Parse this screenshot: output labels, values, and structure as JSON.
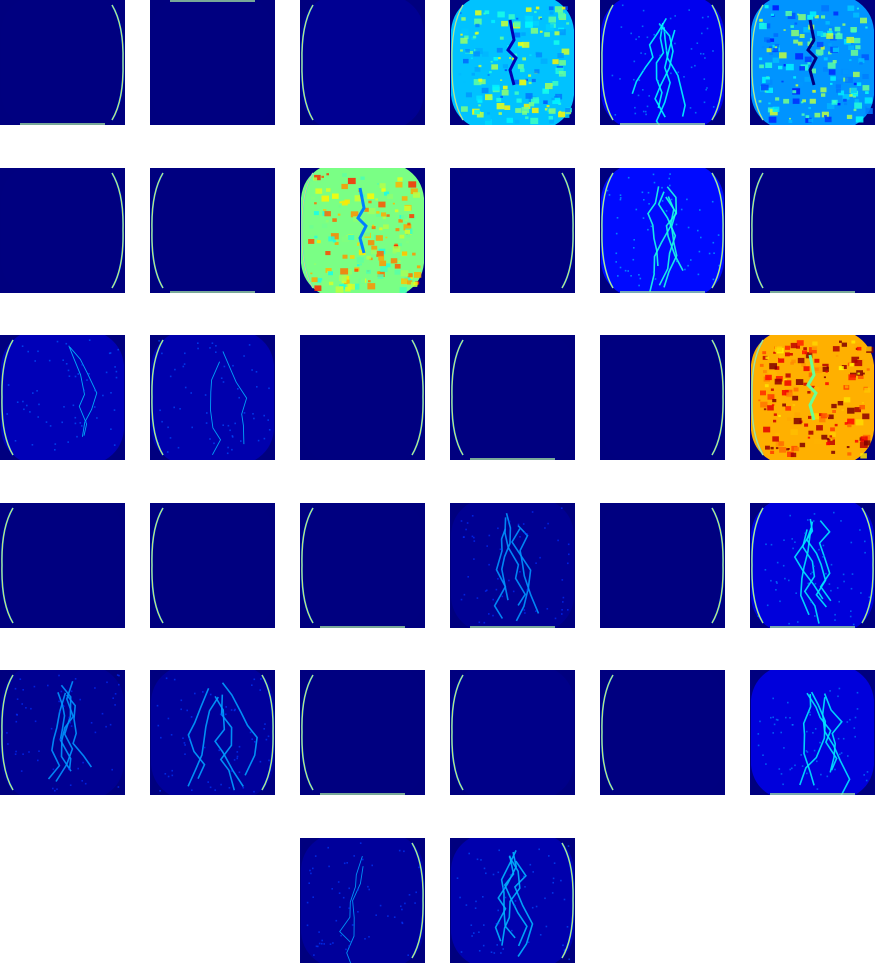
{
  "colormap": "jet",
  "background_color": "#ffffff",
  "maps": [
    {
      "level": 0.0,
      "edge": "right-bottom"
    },
    {
      "level": 0.0,
      "edge": "top"
    },
    {
      "level": 0.02,
      "edge": "left"
    },
    {
      "level": 0.35,
      "edge": "left",
      "pattern": "cells"
    },
    {
      "level": 0.12,
      "edge": "all",
      "pattern": "veins"
    },
    {
      "level": 0.3,
      "edge": "left",
      "pattern": "cells"
    },
    {
      "level": 0.0,
      "edge": "right"
    },
    {
      "level": 0.0,
      "edge": "left-bottom"
    },
    {
      "level": 0.55,
      "edge": "left",
      "pattern": "cells"
    },
    {
      "level": 0.0,
      "edge": "right"
    },
    {
      "level": 0.15,
      "edge": "all",
      "pattern": "veins"
    },
    {
      "level": 0.0,
      "edge": "left-bottom"
    },
    {
      "level": 0.06,
      "edge": "left",
      "pattern": "sparse"
    },
    {
      "level": 0.05,
      "edge": "left",
      "pattern": "sparse"
    },
    {
      "level": 0.0,
      "edge": "right"
    },
    {
      "level": 0.0,
      "edge": "left-bottom"
    },
    {
      "level": 0.0,
      "edge": "right"
    },
    {
      "level": 0.78,
      "edge": "left",
      "pattern": "cells"
    },
    {
      "level": 0.0,
      "edge": "left"
    },
    {
      "level": 0.0,
      "edge": "left"
    },
    {
      "level": 0.0,
      "edge": "left-bottom"
    },
    {
      "level": 0.02,
      "edge": "bottom",
      "pattern": "veins"
    },
    {
      "level": 0.0,
      "edge": "right"
    },
    {
      "level": 0.1,
      "edge": "all",
      "pattern": "veins"
    },
    {
      "level": 0.02,
      "edge": "left",
      "pattern": "veins"
    },
    {
      "level": 0.03,
      "edge": "right",
      "pattern": "veins"
    },
    {
      "level": 0.0,
      "edge": "left-bottom"
    },
    {
      "level": 0.01,
      "edge": "left"
    },
    {
      "level": 0.0,
      "edge": "left"
    },
    {
      "level": 0.1,
      "edge": "bottom",
      "pattern": "veins"
    },
    {
      "level": 0.03,
      "edge": "right",
      "pattern": "sparse"
    },
    {
      "level": 0.05,
      "edge": "right",
      "pattern": "veins"
    }
  ]
}
